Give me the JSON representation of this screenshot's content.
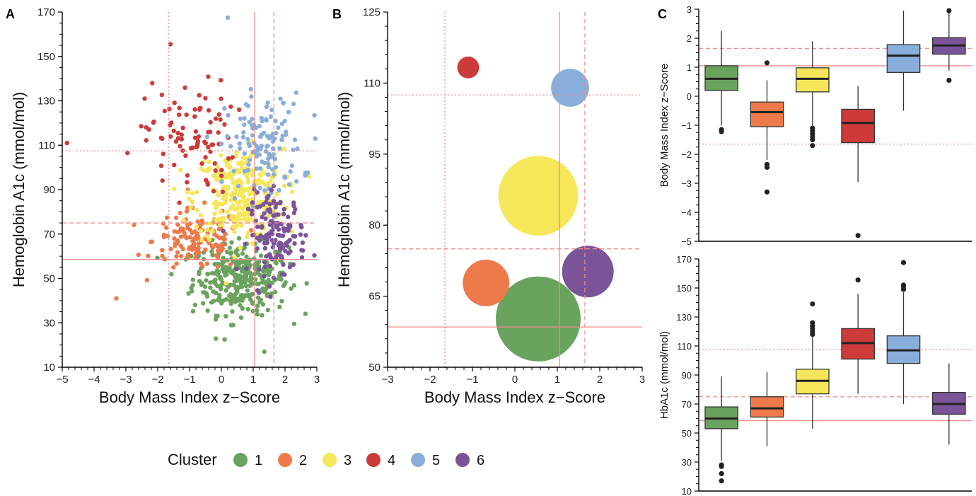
{
  "colors": {
    "1": "#6aa35e",
    "2": "#ee7a4c",
    "3": "#f5e65a",
    "4": "#cc3a3a",
    "5": "#8aaedb",
    "6": "#7a5398",
    "ref": "#f28b8b"
  },
  "legend": {
    "title": "Cluster",
    "items": [
      "1",
      "2",
      "3",
      "4",
      "5",
      "6"
    ]
  },
  "chart_data": [
    {
      "panel": "A",
      "type": "scatter",
      "xlabel": "Body Mass Index z−Score",
      "ylabel": "Hemoglobin A1c (mmol/mol)",
      "xlim": [
        -5,
        3
      ],
      "ylim": [
        10,
        170
      ],
      "xticks": [
        "−5",
        "−4",
        "−3",
        "−2",
        "−1",
        "0",
        "1",
        "2",
        "3"
      ],
      "yticks": [
        "10",
        "30",
        "50",
        "70",
        "90",
        "110",
        "130",
        "150",
        "170"
      ],
      "ref_lines": {
        "v_solid": 1.05,
        "v_dashed": 1.65,
        "v_dotted": -1.65,
        "h_solid": 58.5,
        "h_dashed": 75,
        "h_dotted": 107.5
      },
      "cluster_centers": [
        {
          "cluster": "1",
          "x": 0.6,
          "y": 50,
          "sx": 0.75,
          "sy": 8
        },
        {
          "cluster": "2",
          "x": -0.75,
          "y": 67,
          "sx": 0.7,
          "sy": 7
        },
        {
          "cluster": "3",
          "x": 0.55,
          "y": 88,
          "sx": 0.7,
          "sy": 10
        },
        {
          "cluster": "4",
          "x": -1.0,
          "y": 113,
          "sx": 0.7,
          "sy": 13
        },
        {
          "cluster": "5",
          "x": 1.35,
          "y": 109,
          "sx": 0.6,
          "sy": 12
        },
        {
          "cluster": "6",
          "x": 1.75,
          "y": 70,
          "sx": 0.45,
          "sy": 9
        }
      ],
      "notable_points": [
        {
          "cluster": "4",
          "x": -4.85,
          "y": 111
        },
        {
          "cluster": "4",
          "x": -2.95,
          "y": 106.5
        },
        {
          "cluster": "2",
          "x": -3.3,
          "y": 41
        },
        {
          "cluster": "5",
          "x": 0.2,
          "y": 167.5
        },
        {
          "cluster": "1",
          "x": 1.35,
          "y": 17
        },
        {
          "cluster": "1",
          "x": 0.1,
          "y": 22.5
        },
        {
          "cluster": "4",
          "x": -1.6,
          "y": 155.5
        },
        {
          "cluster": "5",
          "x": 2.95,
          "y": 113
        }
      ]
    },
    {
      "panel": "B",
      "type": "bubble",
      "xlabel": "Body Mass Index z−Score",
      "ylabel": "Hemoglobin A1c (mmol/mol)",
      "xlim": [
        -3,
        3
      ],
      "ylim": [
        50,
        125
      ],
      "xticks": [
        "−3",
        "−2",
        "−1",
        "0",
        "1",
        "2",
        "3"
      ],
      "yticks": [
        "50",
        "65",
        "80",
        "95",
        "110",
        "125"
      ],
      "ref_lines": {
        "v_solid": 1.05,
        "v_dashed": 1.65,
        "v_dotted": -1.65,
        "h_solid": 58.5,
        "h_dashed": 75,
        "h_dotted": 107.5
      },
      "points": [
        {
          "cluster": "1",
          "x": 0.55,
          "y": 60.2,
          "size": 1.0
        },
        {
          "cluster": "2",
          "x": -0.68,
          "y": 67.8,
          "size": 0.3
        },
        {
          "cluster": "3",
          "x": 0.55,
          "y": 86.2,
          "size": 0.88
        },
        {
          "cluster": "4",
          "x": -1.1,
          "y": 113.3,
          "size": 0.05
        },
        {
          "cluster": "5",
          "x": 1.3,
          "y": 109.0,
          "size": 0.2
        },
        {
          "cluster": "6",
          "x": 1.72,
          "y": 70.2,
          "size": 0.37
        }
      ]
    },
    {
      "panel": "C-top",
      "type": "box",
      "ylabel": "Body Mass Index z−Score",
      "ylim": [
        -5,
        3
      ],
      "yticks": [
        "−5",
        "−4",
        "−3",
        "−2",
        "−1",
        "0",
        "1",
        "2",
        "3"
      ],
      "ref_lines": {
        "h_solid": 1.05,
        "h_dashed": 1.65,
        "h_dotted": -1.65
      },
      "boxes": [
        {
          "cluster": "1",
          "q1": 0.2,
          "median": 0.6,
          "q3": 1.05,
          "lo": -1.0,
          "hi": 2.25,
          "outliers": [
            -1.15,
            -1.22
          ]
        },
        {
          "cluster": "2",
          "q1": -1.05,
          "median": -0.55,
          "q3": -0.2,
          "lo": -2.2,
          "hi": 0.55,
          "outliers": [
            1.15,
            -2.35,
            -2.45,
            -3.3
          ]
        },
        {
          "cluster": "3",
          "q1": 0.15,
          "median": 0.6,
          "q3": 0.98,
          "lo": -1.05,
          "hi": 1.9,
          "outliers": [
            -1.1,
            -1.2,
            -1.3,
            -1.4,
            -1.5,
            -1.7
          ]
        },
        {
          "cluster": "4",
          "q1": -1.6,
          "median": -0.92,
          "q3": -0.45,
          "lo": -2.95,
          "hi": 0.35,
          "outliers": [
            -4.8
          ]
        },
        {
          "cluster": "5",
          "q1": 0.82,
          "median": 1.4,
          "q3": 1.78,
          "lo": -0.5,
          "hi": 2.95,
          "outliers": []
        },
        {
          "cluster": "6",
          "q1": 1.45,
          "median": 1.75,
          "q3": 2.02,
          "lo": 0.88,
          "hi": 2.95,
          "outliers": [
            0.55,
            2.95
          ]
        }
      ]
    },
    {
      "panel": "C-bottom",
      "type": "box",
      "ylabel": "HbA1c (mmol/mol)",
      "ylim": [
        10,
        170
      ],
      "yticks": [
        "10",
        "30",
        "50",
        "70",
        "90",
        "110",
        "130",
        "150",
        "170"
      ],
      "ref_lines": {
        "h_solid": 58.5,
        "h_dashed": 75,
        "h_dotted": 107.5
      },
      "boxes": [
        {
          "cluster": "1",
          "q1": 53,
          "median": 60,
          "q3": 68,
          "lo": 31,
          "hi": 89,
          "outliers": [
            28,
            27,
            22,
            17
          ]
        },
        {
          "cluster": "2",
          "q1": 61,
          "median": 67,
          "q3": 75,
          "lo": 41,
          "hi": 92,
          "outliers": []
        },
        {
          "cluster": "3",
          "q1": 77,
          "median": 86,
          "q3": 94,
          "lo": 53,
          "hi": 117,
          "outliers": [
            118,
            120,
            122,
            124,
            126,
            139
          ]
        },
        {
          "cluster": "4",
          "q1": 101,
          "median": 112,
          "q3": 122,
          "lo": 77,
          "hi": 146,
          "outliers": [
            155.5
          ]
        },
        {
          "cluster": "5",
          "q1": 98,
          "median": 107,
          "q3": 117,
          "lo": 70,
          "hi": 147,
          "outliers": [
            149,
            151,
            152,
            167.5
          ]
        },
        {
          "cluster": "6",
          "q1": 63,
          "median": 70,
          "q3": 78,
          "lo": 42,
          "hi": 98,
          "outliers": []
        }
      ]
    }
  ],
  "panels": {
    "a": "A",
    "b": "B",
    "c": "C"
  }
}
